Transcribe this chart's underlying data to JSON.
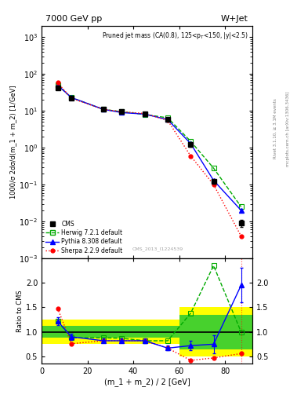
{
  "title_left": "7000 GeV pp",
  "title_right": "W+Jet",
  "annotation": "Pruned jet mass (CA(0.8), 125<p$_T$<150, |y|<2.5)",
  "watermark": "CMS_2013_I1224539",
  "ylabel_main": "1000/σ 2dσ/d(m_1 + m_2) [1/GeV]",
  "ylabel_ratio": "Ratio to CMS",
  "xlabel": "(m_1 + m_2) / 2 [GeV]",
  "right_label": "Rivet 3.1.10, ≥ 3.1M events",
  "right_label2": "mcplots.cern.ch [arXiv:1306.3436]",
  "x_cms": [
    7,
    13,
    27,
    35,
    45,
    55,
    65,
    75,
    87
  ],
  "y_cms": [
    42,
    22,
    11,
    9.5,
    8.5,
    6.0,
    1.2,
    0.12,
    0.009
  ],
  "yerr_cms": [
    3,
    2,
    0.9,
    0.7,
    0.6,
    0.4,
    0.12,
    0.015,
    0.002
  ],
  "x_herwig": [
    7,
    13,
    27,
    35,
    45,
    55,
    65,
    75,
    87
  ],
  "y_herwig": [
    50,
    23,
    11,
    9.5,
    8.0,
    6.5,
    1.5,
    0.28,
    0.025
  ],
  "x_pythia": [
    7,
    13,
    27,
    35,
    45,
    55,
    65,
    75,
    87
  ],
  "y_pythia": [
    50,
    23,
    11,
    9.0,
    8.2,
    5.8,
    1.3,
    0.13,
    0.02
  ],
  "x_sherpa": [
    7,
    13,
    27,
    35,
    45,
    55,
    65,
    75,
    87
  ],
  "y_sherpa": [
    58,
    22,
    11,
    9.5,
    8.5,
    5.5,
    0.6,
    0.1,
    0.004
  ],
  "ratio_herwig": [
    1.22,
    0.88,
    0.88,
    0.87,
    0.82,
    0.82,
    1.38,
    2.35,
    1.0
  ],
  "ratio_pythia": [
    1.22,
    0.9,
    0.82,
    0.82,
    0.82,
    0.67,
    0.72,
    0.75,
    1.95
  ],
  "ratio_sherpa": [
    1.48,
    0.76,
    0.82,
    0.82,
    0.82,
    0.67,
    0.42,
    0.47,
    0.56
  ],
  "ratio_pythia_err_lo": [
    0.08,
    0.06,
    0.04,
    0.04,
    0.05,
    0.05,
    0.1,
    0.18,
    0.35
  ],
  "ratio_pythia_err_hi": [
    0.08,
    0.06,
    0.04,
    0.04,
    0.05,
    0.05,
    0.1,
    0.18,
    0.35
  ],
  "band_edges": [
    0,
    10,
    20,
    60,
    70,
    92
  ],
  "band_green_half": [
    0.12,
    0.12,
    0.12,
    0.35,
    0.35,
    0.35
  ],
  "band_yellow_half": [
    0.25,
    0.25,
    0.25,
    0.5,
    0.5,
    0.5
  ],
  "color_cms": "#000000",
  "color_herwig": "#00aa00",
  "color_pythia": "#0000ff",
  "color_sherpa": "#ff0000",
  "xlim": [
    0,
    92
  ],
  "ylim_main": [
    0.001,
    2000
  ],
  "ylim_ratio": [
    0.35,
    2.5
  ],
  "ratio_yticks": [
    0.5,
    1.0,
    1.5,
    2.0
  ]
}
